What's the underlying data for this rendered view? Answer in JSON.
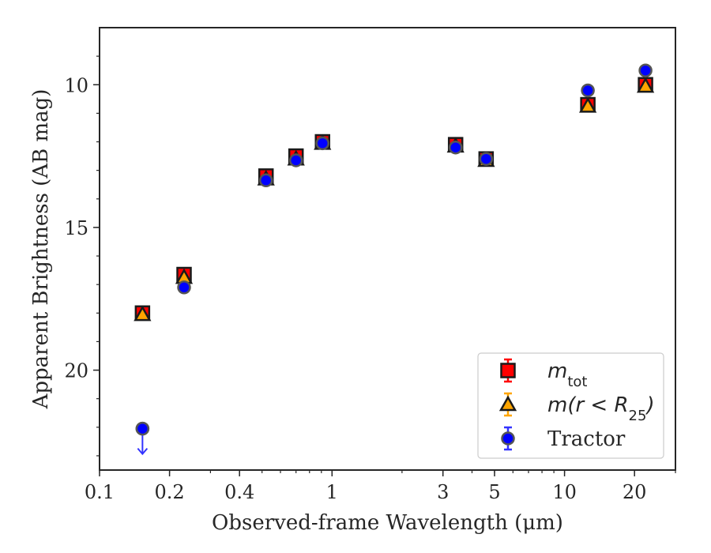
{
  "chart_data": {
    "type": "scatter",
    "xlabel": "Observed-frame Wavelength (μm)",
    "ylabel": "Apparent Brightness (AB mag)",
    "x_scale": "log",
    "xlim": [
      0.1,
      30
    ],
    "ylim": [
      23.5,
      8
    ],
    "y_inverted": true,
    "x_ticks": [
      0.1,
      0.2,
      0.4,
      1,
      3,
      5,
      10,
      20
    ],
    "x_tick_labels": [
      "0.1",
      "0.2",
      "0.4",
      "1",
      "3",
      "5",
      "10",
      "20"
    ],
    "y_ticks": [
      10,
      15,
      20
    ],
    "y_tick_labels": [
      "10",
      "15",
      "20"
    ],
    "legend_position": "lower-right",
    "grid": false,
    "series": [
      {
        "name": "m_tot",
        "legend_base": "m",
        "legend_sub": "tot",
        "legend_suffix": "",
        "marker": "square",
        "color": "#ff0000",
        "error_color": "#ff0000",
        "x": [
          0.153,
          0.231,
          0.52,
          0.7,
          0.91,
          3.4,
          4.6,
          12.6,
          22.3
        ],
        "y": [
          18.0,
          16.65,
          13.2,
          12.5,
          12.0,
          12.1,
          12.6,
          10.7,
          10.0
        ]
      },
      {
        "name": "m(r < R_25)",
        "legend_base": "m(r < R",
        "legend_sub": "25",
        "legend_suffix": ")",
        "marker": "triangle",
        "color": "#ffa500",
        "error_color": "#ffa500",
        "x": [
          0.153,
          0.231,
          0.52,
          0.7,
          0.91,
          3.4,
          4.6,
          12.6,
          22.3
        ],
        "y": [
          18.05,
          16.75,
          13.3,
          12.6,
          12.05,
          12.15,
          12.65,
          10.75,
          10.05
        ]
      },
      {
        "name": "Tractor",
        "legend_base": "Tractor",
        "legend_sub": "",
        "legend_suffix": "",
        "marker": "circle",
        "color": "#0000ff",
        "error_color": "#3333ff",
        "x": [
          0.153,
          0.231,
          0.52,
          0.7,
          0.91,
          3.4,
          4.6,
          12.6,
          22.3
        ],
        "y": [
          22.05,
          17.1,
          13.35,
          12.65,
          12.05,
          12.2,
          12.6,
          10.2,
          9.5
        ],
        "upper_limit_index": 0
      }
    ]
  }
}
